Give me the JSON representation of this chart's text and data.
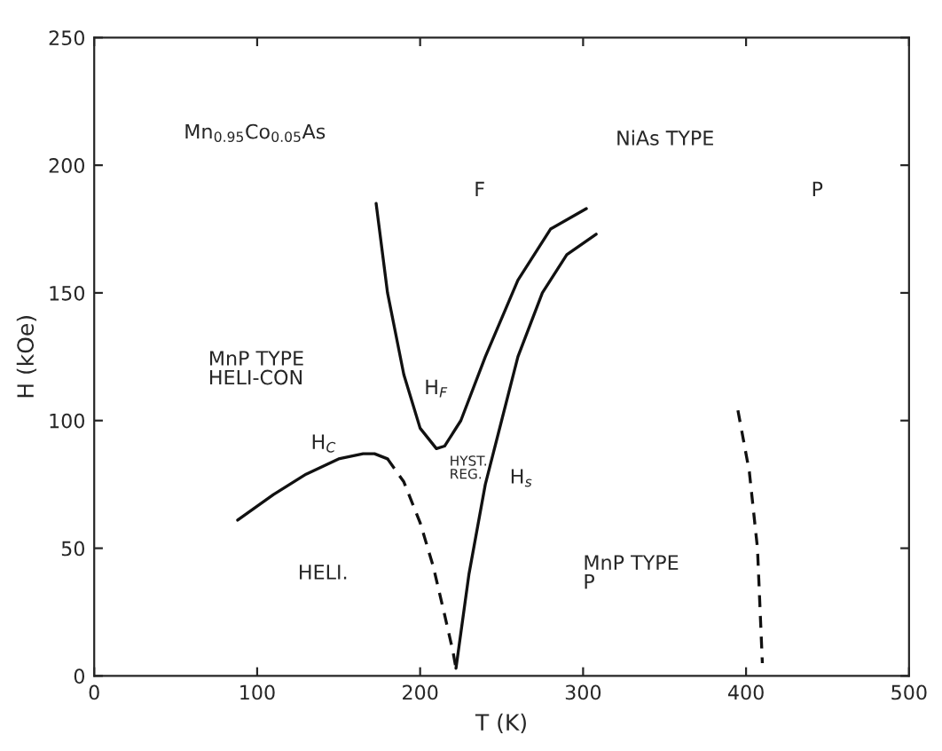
{
  "chart_data": {
    "type": "line",
    "xlabel": "T (K)",
    "ylabel": "H (kOe)",
    "xlim": [
      0,
      500
    ],
    "ylim": [
      0,
      250
    ],
    "xticks": [
      0,
      100,
      200,
      300,
      400,
      500
    ],
    "yticks": [
      0,
      50,
      100,
      150,
      200,
      250
    ],
    "grid": false,
    "legend": false,
    "marker": "none",
    "series": [
      {
        "color": "#111111",
        "line_style": "solid",
        "x": [
          88,
          110,
          130,
          150,
          165,
          172,
          180
        ],
        "values": [
          61,
          71,
          79,
          85,
          87,
          87,
          85
        ]
      },
      {
        "color": "#111111",
        "line_style": "dashed",
        "x": [
          180,
          190,
          200,
          208,
          215,
          220,
          222
        ],
        "values": [
          85,
          76,
          60,
          43,
          24,
          10,
          3
        ]
      },
      {
        "color": "#111111",
        "line_style": "solid",
        "x": [
          173,
          180,
          190,
          200,
          210,
          215,
          225,
          240,
          260,
          280,
          302
        ],
        "values": [
          185,
          150,
          118,
          97,
          89,
          90,
          100,
          125,
          155,
          175,
          183
        ]
      },
      {
        "color": "#111111",
        "line_style": "solid",
        "x": [
          222,
          230,
          240,
          250,
          260,
          275,
          290,
          308
        ],
        "values": [
          3,
          40,
          75,
          100,
          125,
          150,
          165,
          173
        ]
      },
      {
        "color": "#111111",
        "line_style": "dashed",
        "x": [
          395,
          402,
          407,
          409,
          410
        ],
        "values": [
          104,
          80,
          50,
          20,
          5
        ]
      }
    ],
    "annotations": [
      "Mn$_{0.95}$Co$_{0.05}$As",
      "NiAs TYPE",
      "F",
      "P",
      "MnP TYPE\nHELI-CON",
      "H$_{F}$",
      "H$_{C}$",
      "HYST.\nREG.",
      "H$_{s}$",
      "HELI.",
      "MnP TYPE\nP"
    ]
  }
}
